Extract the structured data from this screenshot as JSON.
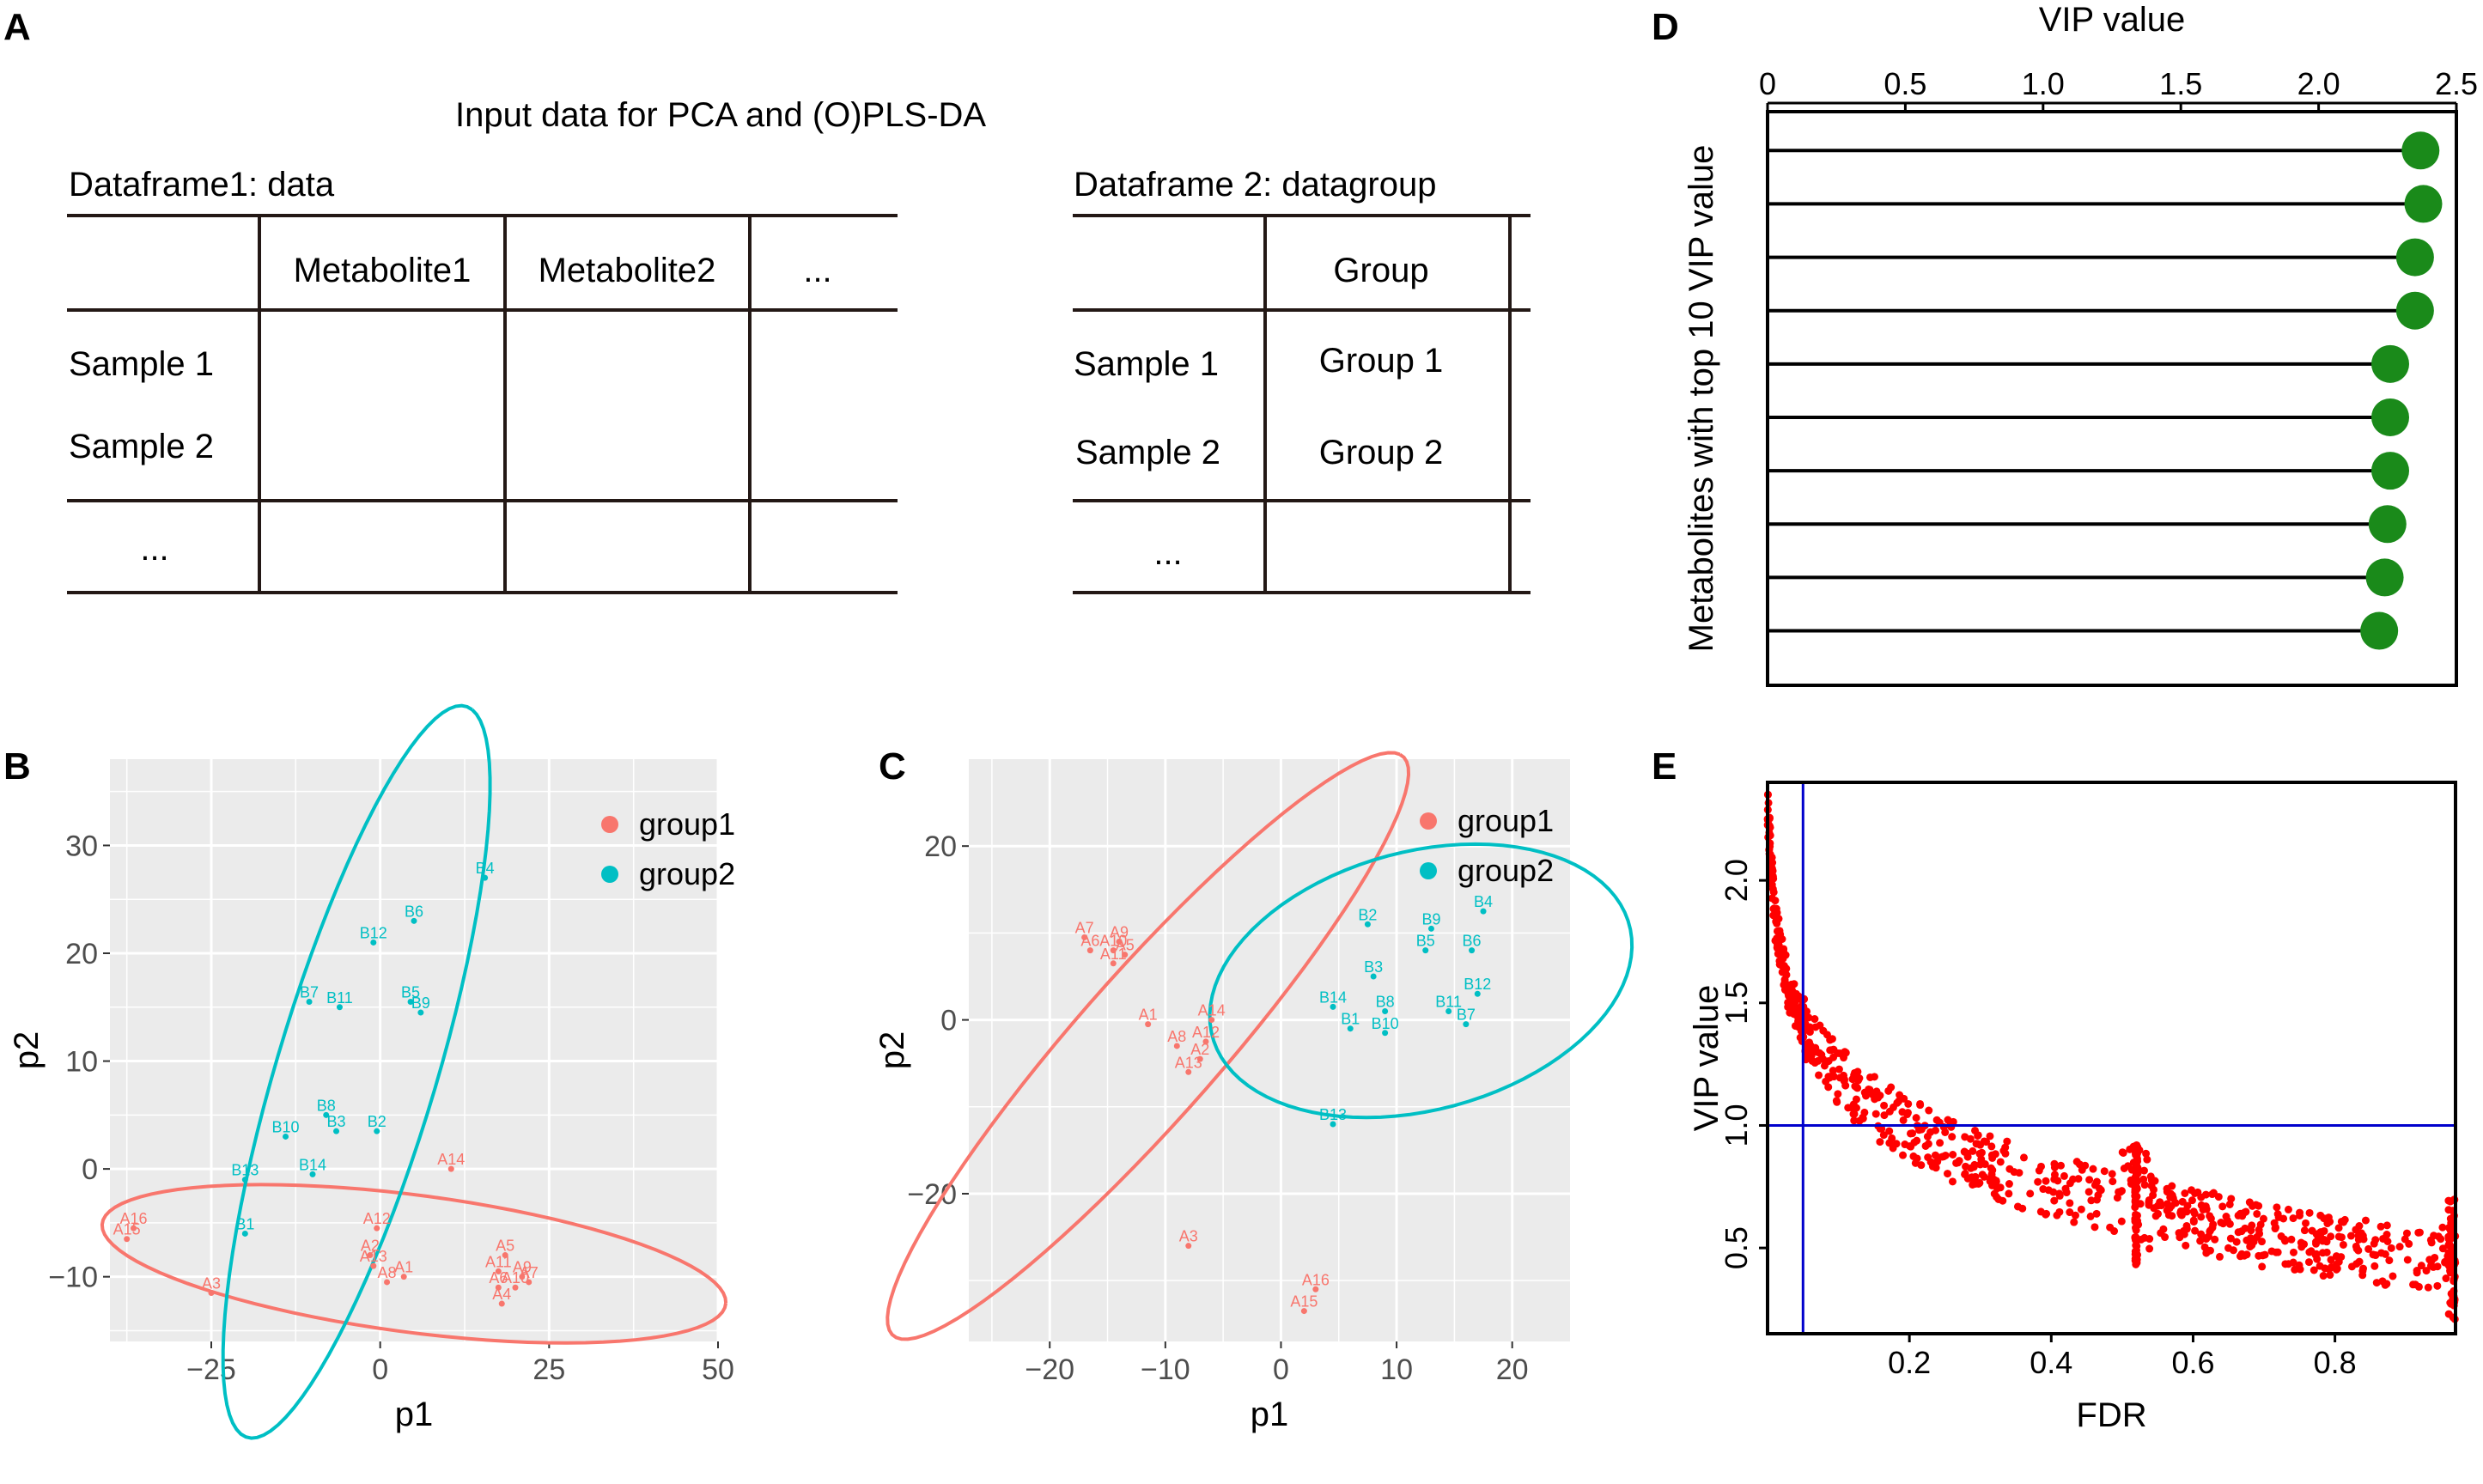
{
  "panels": {
    "a": "A",
    "b": "B",
    "c": "C",
    "d": "D",
    "e": "E"
  },
  "colors": {
    "group1": "#F8766D",
    "group2": "#00BFC4",
    "dot": "#1a8a1a",
    "scatter": "#ff0000",
    "ref_line": "#0000cc"
  },
  "table": {
    "title": "Input data for PCA and (O)PLS-DA",
    "df1": {
      "title": "Dataframe1: data",
      "headers": [
        "Metabolite1",
        "Metabolite2",
        "..."
      ],
      "rows": [
        "Sample 1",
        "Sample 2",
        "..."
      ]
    },
    "df2": {
      "title": "Dataframe 2: datagroup",
      "header": "Group",
      "rows": [
        {
          "sample": "Sample 1",
          "group": "Group 1"
        },
        {
          "sample": "Sample 2",
          "group": "Group 2"
        },
        {
          "sample": "...",
          "group": ""
        }
      ]
    }
  },
  "chart_data": [
    {
      "id": "B",
      "type": "scatter",
      "xlabel": "p1",
      "ylabel": "p2",
      "xlim": [
        -40,
        50
      ],
      "ylim": [
        -16,
        38
      ],
      "xticks": [
        -25,
        0,
        25,
        50
      ],
      "yticks": [
        -10,
        0,
        10,
        20,
        30
      ],
      "legend": [
        "group1",
        "group2"
      ],
      "series": [
        {
          "name": "group1",
          "points": [
            {
              "label": "A16",
              "x": -36.5,
              "y": -5.5
            },
            {
              "label": "A15",
              "x": -37.5,
              "y": -6.5
            },
            {
              "label": "A3",
              "x": -25,
              "y": -11.5
            },
            {
              "label": "A12",
              "x": -0.5,
              "y": -5.5
            },
            {
              "label": "A2",
              "x": -1.5,
              "y": -8
            },
            {
              "label": "A13",
              "x": -1,
              "y": -9
            },
            {
              "label": "A8",
              "x": 1,
              "y": -10.5
            },
            {
              "label": "A1",
              "x": 3.5,
              "y": -10
            },
            {
              "label": "A14",
              "x": 10.5,
              "y": 0
            },
            {
              "label": "A5",
              "x": 18.5,
              "y": -8
            },
            {
              "label": "A11",
              "x": 17.5,
              "y": -9.5
            },
            {
              "label": "A9",
              "x": 21,
              "y": -10
            },
            {
              "label": "A6",
              "x": 17.5,
              "y": -11
            },
            {
              "label": "A10",
              "x": 20,
              "y": -11
            },
            {
              "label": "A7",
              "x": 22,
              "y": -10.5
            },
            {
              "label": "A4",
              "x": 18,
              "y": -12.5
            }
          ]
        },
        {
          "name": "group2",
          "points": [
            {
              "label": "B4",
              "x": 15.5,
              "y": 27
            },
            {
              "label": "B6",
              "x": 5,
              "y": 23
            },
            {
              "label": "B12",
              "x": -1,
              "y": 21
            },
            {
              "label": "B7",
              "x": -10.5,
              "y": 15.5
            },
            {
              "label": "B11",
              "x": -6,
              "y": 15
            },
            {
              "label": "B5",
              "x": 4.5,
              "y": 15.5
            },
            {
              "label": "B9",
              "x": 6,
              "y": 14.5
            },
            {
              "label": "B8",
              "x": -8,
              "y": 5
            },
            {
              "label": "B10",
              "x": -14,
              "y": 3
            },
            {
              "label": "B3",
              "x": -6.5,
              "y": 3.5
            },
            {
              "label": "B2",
              "x": -0.5,
              "y": 3.5
            },
            {
              "label": "B13",
              "x": -20,
              "y": -1
            },
            {
              "label": "B14",
              "x": -10,
              "y": -0.5
            },
            {
              "label": "B1",
              "x": -20,
              "y": -6
            }
          ]
        }
      ],
      "ellipses": [
        {
          "name": "group1",
          "cx": 5,
          "cy": -8.8,
          "rx": 46.3,
          "ry": 6.4,
          "angle": -4.5
        },
        {
          "name": "group2",
          "cx": -3.5,
          "cy": 9,
          "rx": 37.7,
          "ry": 11.1,
          "angle": 63
        }
      ]
    },
    {
      "id": "C",
      "type": "scatter",
      "xlabel": "p1",
      "ylabel": "p2",
      "xlim": [
        -27,
        25
      ],
      "ylim": [
        -37,
        30
      ],
      "xticks": [
        -20,
        -10,
        0,
        10,
        20
      ],
      "yticks": [
        -20,
        0,
        20
      ],
      "legend": [
        "group1",
        "group2"
      ],
      "series": [
        {
          "name": "group1",
          "points": [
            {
              "label": "A7",
              "x": -17,
              "y": 9.5
            },
            {
              "label": "A9",
              "x": -14,
              "y": 9
            },
            {
              "label": "A6",
              "x": -16.5,
              "y": 8
            },
            {
              "label": "A10",
              "x": -14.5,
              "y": 8
            },
            {
              "label": "A5",
              "x": -13.5,
              "y": 7.5
            },
            {
              "label": "A11",
              "x": -14.5,
              "y": 6.5
            },
            {
              "label": "A1",
              "x": -11.5,
              "y": -0.5
            },
            {
              "label": "A14",
              "x": -6,
              "y": 0
            },
            {
              "label": "A8",
              "x": -9,
              "y": -3
            },
            {
              "label": "A12",
              "x": -6.5,
              "y": -2.5
            },
            {
              "label": "A2",
              "x": -7,
              "y": -4.5
            },
            {
              "label": "A13",
              "x": -8,
              "y": -6
            },
            {
              "label": "A3",
              "x": -8,
              "y": -26
            },
            {
              "label": "A16",
              "x": 3,
              "y": -31
            },
            {
              "label": "A15",
              "x": 2,
              "y": -33.5
            }
          ]
        },
        {
          "name": "group2",
          "points": [
            {
              "label": "B4",
              "x": 17.5,
              "y": 12.5
            },
            {
              "label": "B9",
              "x": 13,
              "y": 10.5
            },
            {
              "label": "B2",
              "x": 7.5,
              "y": 11
            },
            {
              "label": "B5",
              "x": 12.5,
              "y": 8
            },
            {
              "label": "B6",
              "x": 16.5,
              "y": 8
            },
            {
              "label": "B3",
              "x": 8,
              "y": 5
            },
            {
              "label": "B12",
              "x": 17,
              "y": 3
            },
            {
              "label": "B8",
              "x": 9,
              "y": 1
            },
            {
              "label": "B14",
              "x": 4.5,
              "y": 1.5
            },
            {
              "label": "B11",
              "x": 14.5,
              "y": 1
            },
            {
              "label": "B1",
              "x": 6,
              "y": -1
            },
            {
              "label": "B10",
              "x": 9,
              "y": -1.5
            },
            {
              "label": "B7",
              "x": 16,
              "y": -0.5
            },
            {
              "label": "B13",
              "x": 4.5,
              "y": -12
            }
          ]
        }
      ],
      "ellipses": [
        {
          "name": "group1",
          "cx": -11.5,
          "cy": -3,
          "rx": 40,
          "ry": 6.9,
          "angle": 57
        },
        {
          "name": "group2",
          "cx": 12.1,
          "cy": 4.5,
          "rx": 19.4,
          "ry": 14.3,
          "angle": 30
        }
      ]
    },
    {
      "id": "D",
      "type": "lollipop",
      "title": "VIP value",
      "ylabel": "Metabolites with top 10 VIP value",
      "xlim": [
        0,
        2.5
      ],
      "xticks": [
        "0",
        "0.5",
        "1.0",
        "1.5",
        "2.0",
        "2.5"
      ],
      "values": [
        2.37,
        2.38,
        2.35,
        2.35,
        2.26,
        2.26,
        2.26,
        2.25,
        2.24,
        2.22
      ]
    },
    {
      "id": "E",
      "type": "scatter",
      "xlabel": "FDR",
      "ylabel": "VIP value",
      "xlim": [
        0,
        0.97
      ],
      "ylim": [
        0.15,
        2.4
      ],
      "xticks": [
        "0.2",
        "0.4",
        "0.6",
        "0.8"
      ],
      "yticks": [
        "0.5",
        "1.0",
        "1.5",
        "2.0"
      ],
      "vline_x": 0.05,
      "hline_y": 1.0,
      "n_points": 900,
      "curve": [
        {
          "x": 0.0,
          "y": 2.3
        },
        {
          "x": 0.01,
          "y": 1.85
        },
        {
          "x": 0.03,
          "y": 1.55
        },
        {
          "x": 0.06,
          "y": 1.35
        },
        {
          "x": 0.1,
          "y": 1.2
        },
        {
          "x": 0.15,
          "y": 1.08
        },
        {
          "x": 0.2,
          "y": 0.98
        },
        {
          "x": 0.3,
          "y": 0.85
        },
        {
          "x": 0.4,
          "y": 0.75
        },
        {
          "x": 0.52,
          "y": 0.68
        },
        {
          "x": 0.6,
          "y": 0.62
        },
        {
          "x": 0.7,
          "y": 0.55
        },
        {
          "x": 0.8,
          "y": 0.5
        },
        {
          "x": 0.9,
          "y": 0.47
        },
        {
          "x": 0.97,
          "y": 0.45
        }
      ]
    }
  ]
}
